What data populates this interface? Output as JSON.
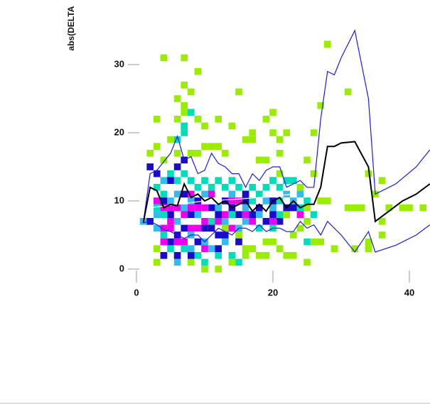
{
  "chart_data": {
    "type": "histogram2d",
    "y_label": "abs(DELTA",
    "xlim": [
      -1,
      43
    ],
    "ylim": [
      -1,
      36
    ],
    "xticks": [
      0,
      20,
      40
    ],
    "yticks": [
      0,
      10,
      20,
      30
    ],
    "cells": [
      {
        "color": "#99ee00",
        "x": [
          4,
          7,
          9,
          7,
          8,
          6,
          7,
          7,
          9,
          6,
          3,
          10,
          12,
          15,
          20,
          19,
          17,
          14,
          16,
          17,
          20,
          21,
          21,
          19,
          25,
          26,
          22,
          28,
          31,
          27,
          26,
          22,
          34,
          36,
          35,
          32,
          31,
          33,
          37,
          39,
          40,
          42,
          36,
          36,
          34,
          32,
          23,
          22,
          25,
          21,
          19,
          18,
          16,
          13,
          15,
          16,
          3,
          3,
          6,
          2,
          2,
          2,
          3,
          5,
          10,
          11,
          12,
          9,
          8,
          4,
          13,
          6,
          18,
          20,
          21,
          22,
          24,
          25,
          26,
          25,
          27,
          28,
          29,
          27,
          34,
          23,
          24,
          17,
          19,
          20,
          10,
          12,
          8,
          14
        ],
        "y": [
          31,
          31,
          29,
          27,
          26,
          25,
          24,
          23,
          22,
          22,
          22,
          21,
          22,
          26,
          23,
          22,
          20,
          21,
          19,
          19,
          20,
          19,
          17,
          16,
          16,
          14,
          13,
          33,
          26,
          24,
          20,
          20,
          14,
          13,
          11,
          9,
          9,
          9,
          9,
          9,
          9,
          9,
          7,
          5,
          4,
          3,
          2,
          2,
          1,
          3,
          4,
          2,
          3,
          6,
          5,
          2,
          1,
          3,
          2,
          7,
          15,
          17,
          18,
          19,
          18,
          18,
          18,
          17,
          17,
          16,
          17,
          17,
          16,
          13,
          14,
          8,
          6,
          7,
          4,
          9,
          10,
          10,
          3,
          4,
          3,
          5,
          12,
          3,
          2,
          4,
          0,
          0,
          1,
          1
        ]
      },
      {
        "color": "#00ddbb",
        "x": [
          5,
          6,
          7,
          8,
          9,
          10,
          11,
          12,
          13,
          14,
          15,
          16,
          17,
          18,
          19,
          20,
          21,
          22,
          23,
          3,
          4,
          3,
          4,
          4,
          5,
          7,
          9,
          10,
          12,
          14,
          15,
          7,
          8,
          7,
          6,
          24,
          25,
          26,
          21,
          21,
          25,
          11,
          17,
          14,
          18,
          20
        ],
        "y": [
          14,
          13,
          14,
          13,
          12,
          13,
          12,
          13,
          12,
          13,
          12,
          11,
          12,
          11,
          12,
          13,
          12,
          13,
          13,
          12,
          11,
          9,
          8,
          5,
          3,
          3,
          2,
          1,
          2,
          2,
          1,
          21,
          23,
          20,
          19,
          9,
          10,
          8,
          10,
          8,
          4,
          7,
          10,
          8,
          6,
          6
        ]
      },
      {
        "color": "#33bbee",
        "x": [
          4,
          6,
          8,
          9,
          10,
          12,
          13,
          14,
          16,
          18,
          19,
          20,
          22,
          23,
          24,
          5,
          6,
          7,
          8,
          10,
          11,
          13,
          15,
          16,
          6,
          8,
          3,
          3,
          1
        ],
        "y": [
          13,
          11,
          10,
          8,
          11,
          9,
          7,
          11,
          9,
          8,
          10,
          9,
          11,
          10,
          11,
          10,
          7,
          9,
          5,
          4,
          3,
          4,
          6,
          7,
          1,
          3,
          8,
          6,
          7
        ]
      },
      {
        "color": "#1a0acc",
        "x": [
          2,
          3,
          5,
          4,
          5,
          7,
          8,
          9,
          11,
          11,
          12,
          10,
          7,
          6,
          5,
          4,
          6,
          8,
          9,
          13,
          12,
          14,
          15,
          16,
          17,
          18,
          19,
          20,
          21,
          22,
          23,
          13,
          12,
          15,
          7,
          2,
          6,
          16,
          20
        ],
        "y": [
          15,
          14,
          13,
          10,
          8,
          11,
          8,
          10,
          9,
          6,
          5,
          6,
          6,
          5,
          4,
          2,
          2,
          2,
          4,
          10,
          8,
          9,
          8,
          10,
          8,
          9,
          7,
          8,
          7,
          9,
          9,
          5,
          3,
          4,
          16,
          7,
          15,
          11,
          10
        ]
      },
      {
        "color": "#ee00ee",
        "x": [
          3,
          4,
          5,
          6,
          5,
          4,
          7,
          8,
          9,
          9,
          10,
          11,
          10,
          6,
          7,
          8,
          4,
          12,
          13,
          14,
          15,
          16,
          17,
          20,
          24,
          10,
          5,
          8,
          14
        ],
        "y": [
          10,
          9,
          9,
          9,
          7,
          6,
          8,
          9,
          6,
          9,
          9,
          11,
          7,
          4,
          4,
          6,
          4,
          7,
          8,
          6,
          10,
          8,
          7,
          7,
          8,
          3,
          6,
          11,
          10
        ]
      }
    ],
    "lines": [
      {
        "color": "#ffffff",
        "x": [
          2,
          6,
          10,
          14,
          18,
          23
        ],
        "values": [
          9,
          9.5,
          10,
          10.2,
          10.5,
          11
        ]
      },
      {
        "color": "#1a1aee",
        "x": [
          1,
          2,
          3,
          5,
          6,
          7,
          8,
          9,
          10,
          11,
          12,
          13,
          14,
          15,
          16,
          17,
          18,
          19,
          20,
          21,
          22,
          23,
          24,
          25,
          26,
          27,
          28,
          29,
          30,
          32,
          34,
          35,
          38,
          41,
          43
        ],
        "values": [
          6.8,
          14,
          14.5,
          17,
          19.5,
          16,
          16.5,
          14,
          14.5,
          17,
          15.5,
          15,
          14,
          14,
          12,
          14,
          13,
          14.5,
          15,
          15,
          12,
          12.5,
          13,
          12,
          12,
          22,
          29,
          28.5,
          31,
          35,
          25,
          11,
          12.5,
          15,
          17.5
        ]
      },
      {
        "color": "#1a1aee",
        "x": [
          1,
          2,
          3,
          4,
          5,
          6,
          7,
          8,
          9,
          10,
          11,
          12,
          13,
          14,
          15,
          16,
          17,
          18,
          19,
          20,
          21,
          22,
          23,
          24,
          25,
          26,
          27,
          28,
          30,
          32,
          34,
          35,
          38,
          41,
          43
        ],
        "values": [
          6.8,
          7,
          6.5,
          5.8,
          5.5,
          5,
          4.5,
          5,
          5,
          4,
          5,
          6,
          5.5,
          5,
          6,
          6,
          5.5,
          6.5,
          5.5,
          6,
          6,
          5.5,
          5.5,
          7,
          6,
          6.5,
          5,
          7,
          5,
          2.5,
          5.5,
          2.5,
          3.5,
          5,
          6.5
        ]
      },
      {
        "color": "#000000",
        "x": [
          1,
          2,
          3,
          4,
          5,
          6,
          7,
          8,
          9,
          10,
          11,
          12,
          13,
          14,
          15,
          16,
          17,
          18,
          19,
          20,
          21,
          22,
          23,
          24,
          25,
          26,
          27,
          28,
          29,
          30,
          32,
          34,
          35,
          37,
          39,
          41,
          43
        ],
        "values": [
          6.8,
          12,
          11.5,
          9,
          9.5,
          9.3,
          12.5,
          10.5,
          11,
          10,
          10.5,
          9.5,
          10,
          9,
          9.5,
          10,
          8.5,
          9.5,
          8.5,
          10,
          10.5,
          9,
          10,
          9,
          9.5,
          9.5,
          12,
          18,
          18,
          18.5,
          18.7,
          15,
          7,
          8.5,
          10,
          11,
          12.5
        ]
      }
    ]
  }
}
